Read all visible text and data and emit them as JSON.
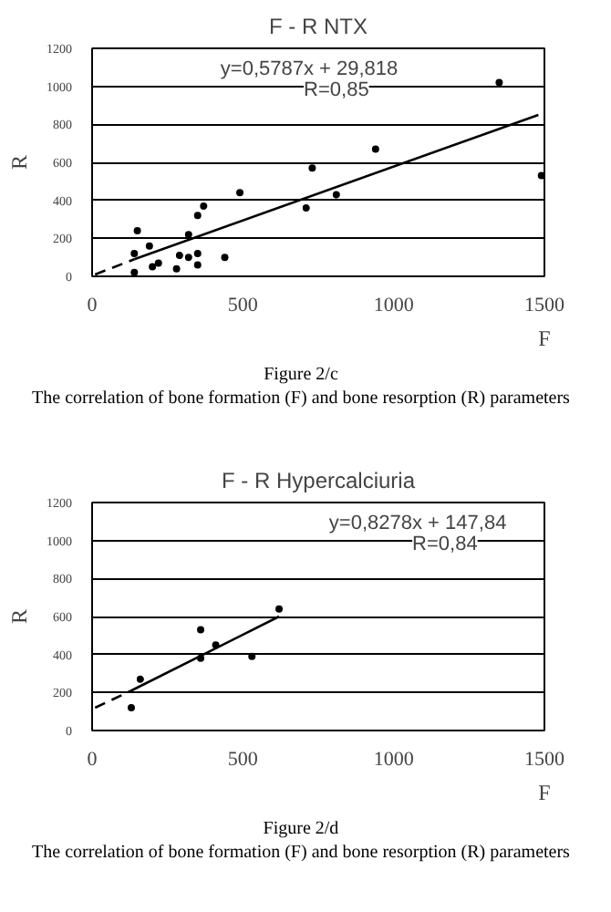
{
  "chart_data": [
    {
      "type": "scatter",
      "title": "F - R NTX",
      "xlabel": "F",
      "ylabel": "R",
      "xlim": [
        0,
        1500
      ],
      "ylim": [
        0,
        1200
      ],
      "xticks": [
        0,
        500,
        1000,
        1500
      ],
      "yticks": [
        0,
        200,
        400,
        600,
        800,
        1000,
        1200
      ],
      "grid": "y",
      "marker": "circle",
      "annotations": [
        "y=0,5787x + 29,818",
        "R=0,85",
        "Figure 2/c",
        "The correlation of bone formation (F) and bone resorption (R) parameters"
      ],
      "series": [
        {
          "color": "#000000",
          "x": [
            150,
            140,
            140,
            190,
            200,
            220,
            290,
            320,
            320,
            350,
            350,
            350,
            370,
            280,
            440,
            490,
            710,
            730,
            810,
            940,
            1350,
            1490
          ],
          "values": [
            240,
            120,
            20,
            160,
            50,
            70,
            110,
            220,
            100,
            120,
            60,
            320,
            370,
            40,
            100,
            440,
            360,
            570,
            430,
            670,
            1020,
            530
          ]
        },
        {
          "type": "line",
          "line_style": "dashed",
          "marker": "none",
          "color": "#000000",
          "x": [
            10,
            140
          ],
          "values": [
            10,
            90
          ]
        },
        {
          "type": "line",
          "line_style": "solid",
          "marker": "none",
          "color": "#000000",
          "x": [
            140,
            1480
          ],
          "values": [
            90,
            850
          ]
        }
      ]
    },
    {
      "type": "scatter",
      "title": "F - R Hypercalciuria",
      "xlabel": "F",
      "ylabel": "R",
      "xlim": [
        0,
        1500
      ],
      "ylim": [
        0,
        1200
      ],
      "xticks": [
        0,
        500,
        1000,
        1500
      ],
      "yticks": [
        0,
        200,
        400,
        600,
        800,
        1000,
        1200
      ],
      "grid": "y",
      "marker": "circle",
      "annotations": [
        "y=0,8278x + 147,84",
        "R=0,84",
        "Figure 2/d",
        "The correlation of bone formation (F) and bone resorption (R) parameters"
      ],
      "series": [
        {
          "color": "#000000",
          "x": [
            130,
            160,
            360,
            360,
            410,
            530,
            620
          ],
          "values": [
            120,
            270,
            530,
            380,
            450,
            390,
            640
          ]
        },
        {
          "type": "line",
          "line_style": "dashed",
          "marker": "none",
          "color": "#000000",
          "x": [
            10,
            130
          ],
          "values": [
            120,
            210
          ]
        },
        {
          "type": "line",
          "line_style": "solid",
          "marker": "none",
          "color": "#000000",
          "x": [
            130,
            620
          ],
          "values": [
            210,
            600
          ]
        }
      ]
    }
  ]
}
